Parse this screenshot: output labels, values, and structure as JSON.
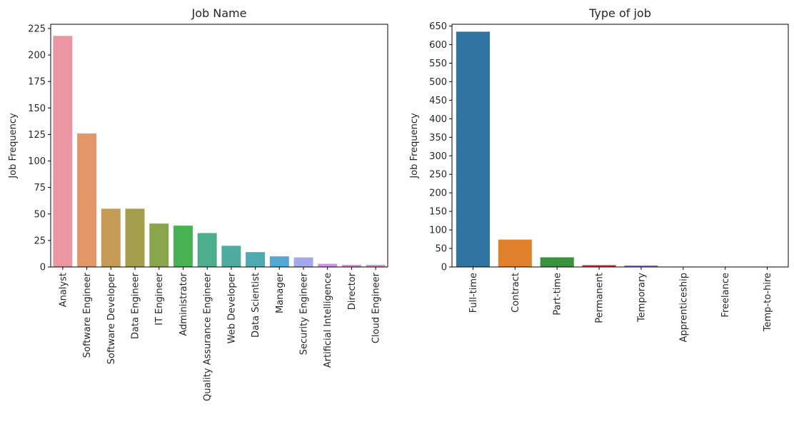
{
  "chart_data": [
    {
      "type": "bar",
      "title": "Job Name",
      "xlabel": "",
      "ylabel": "Job Frequency",
      "categories": [
        "Analyst",
        "Software Engineer",
        "Software Developer",
        "Data Engineer",
        "IT Engineer",
        "Administrator",
        "Quality Assurance Engineer",
        "Web Developer",
        "Data Scientist",
        "Manager",
        "Security Engineer",
        "Artificial Intelligence",
        "Director",
        "Cloud Engineer"
      ],
      "values": [
        218,
        126,
        55,
        55,
        41,
        39,
        32,
        20,
        14,
        10,
        9,
        3,
        2,
        2
      ],
      "colors": [
        "#ea96a3",
        "#e2966a",
        "#c49a54",
        "#a59e4c",
        "#8aa64c",
        "#48b255",
        "#4cae8d",
        "#4dab9f",
        "#4ea9b1",
        "#55a8d6",
        "#a3aaea",
        "#d190ea",
        "#e08ddb",
        "#e98fca"
      ],
      "yticks": [
        0,
        25,
        50,
        75,
        100,
        125,
        150,
        175,
        200,
        225
      ],
      "ylim": [
        0,
        229
      ],
      "grid": false,
      "legend": "none"
    },
    {
      "type": "bar",
      "title": "Type of job",
      "xlabel": "",
      "ylabel": "Job Frequency",
      "categories": [
        "Full-time",
        "Contract",
        "Part-time",
        "Permanent",
        "Temporary",
        "Apprenticeship",
        "Freelance",
        "Temp-to-hire"
      ],
      "values": [
        635,
        74,
        26,
        5,
        4,
        1,
        1,
        1
      ],
      "colors": [
        "#3274a1",
        "#e1812c",
        "#3a923a",
        "#c03d3e",
        "#9372b2",
        "#845b53",
        "#d684bd",
        "#7f7f7f"
      ],
      "yticks": [
        0,
        50,
        100,
        150,
        200,
        250,
        300,
        350,
        400,
        450,
        500,
        550,
        600,
        650
      ],
      "ylim": [
        0,
        655
      ],
      "grid": false,
      "legend": "none"
    }
  ]
}
